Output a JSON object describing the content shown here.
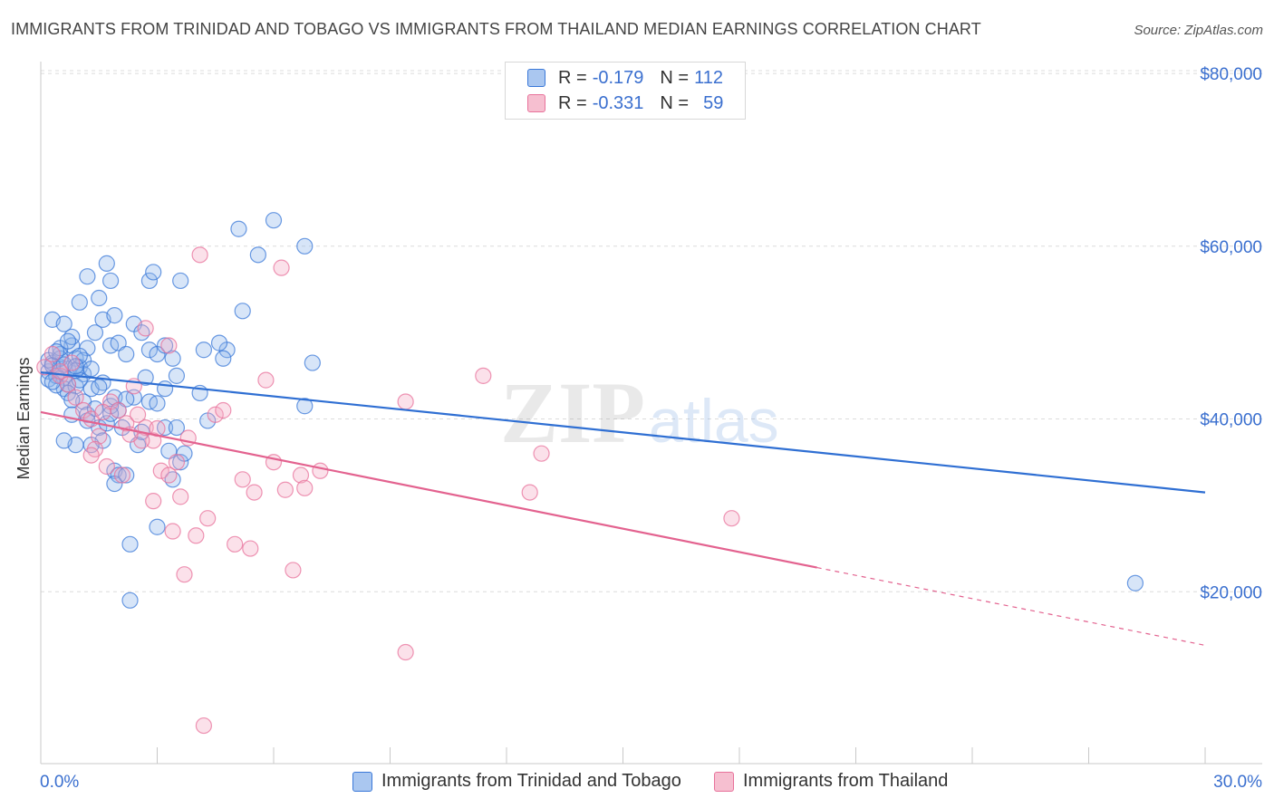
{
  "title": "IMMIGRANTS FROM TRINIDAD AND TOBAGO VS IMMIGRANTS FROM THAILAND MEDIAN EARNINGS CORRELATION CHART",
  "source": "Source: ZipAtlas.com",
  "watermark": {
    "zip": "ZIP",
    "atlas": "atlas"
  },
  "legend": {
    "rows": [
      {
        "r_label": "R =",
        "r_value": "-0.179",
        "n_label": "N =",
        "n_value": "112"
      },
      {
        "r_label": "R =",
        "r_value": "-0.331",
        "n_label": "N =",
        "n_value": "59"
      }
    ]
  },
  "colors": {
    "blue": "#3a78d8",
    "pink": "#e8729b",
    "blue_fill": "#aac7f0",
    "pink_fill": "#f6bfd0"
  },
  "chart_data": {
    "type": "scatter",
    "title": "IMMIGRANTS FROM TRINIDAD AND TOBAGO VS IMMIGRANTS FROM THAILAND MEDIAN EARNINGS CORRELATION CHART",
    "xlabel": "",
    "ylabel": "Median Earnings",
    "xlim": [
      0,
      30
    ],
    "ylim": [
      0,
      82000
    ],
    "x_tick_labels": [
      "0.0%",
      "30.0%"
    ],
    "y_ticks": [
      20000,
      40000,
      60000,
      80000
    ],
    "y_tick_labels": [
      "$20,000",
      "$40,000",
      "$60,000",
      "$80,000"
    ],
    "grid": true,
    "series": [
      {
        "name": "Immigrants from Trinidad and Tobago",
        "color": "#3a78d8",
        "trend": {
          "x0": 0,
          "y0": 45400,
          "x1": 30,
          "y1": 31500
        },
        "points": [
          [
            0.2,
            45500
          ],
          [
            0.3,
            46500
          ],
          [
            0.4,
            45000
          ],
          [
            0.5,
            46000
          ],
          [
            0.2,
            46800
          ],
          [
            0.6,
            44800
          ],
          [
            0.7,
            45800
          ],
          [
            0.5,
            47500
          ],
          [
            0.8,
            48500
          ],
          [
            0.9,
            47000
          ],
          [
            1.0,
            46000
          ],
          [
            1.1,
            45200
          ],
          [
            0.6,
            43500
          ],
          [
            0.7,
            44000
          ],
          [
            0.9,
            43800
          ],
          [
            1.0,
            44500
          ],
          [
            0.3,
            51500
          ],
          [
            0.6,
            51000
          ],
          [
            0.8,
            49500
          ],
          [
            1.2,
            48200
          ],
          [
            1.4,
            50000
          ],
          [
            1.6,
            51500
          ],
          [
            1.8,
            48500
          ],
          [
            2.0,
            48800
          ],
          [
            2.2,
            47500
          ],
          [
            2.4,
            51000
          ],
          [
            2.6,
            50000
          ],
          [
            2.8,
            48000
          ],
          [
            3.0,
            47500
          ],
          [
            3.2,
            48500
          ],
          [
            3.4,
            47000
          ],
          [
            1.2,
            56500
          ],
          [
            1.5,
            54000
          ],
          [
            1.8,
            56000
          ],
          [
            2.8,
            56000
          ],
          [
            2.9,
            57000
          ],
          [
            3.6,
            56000
          ],
          [
            1.0,
            53500
          ],
          [
            1.7,
            58000
          ],
          [
            1.9,
            52000
          ],
          [
            5.1,
            62000
          ],
          [
            6.0,
            63000
          ],
          [
            5.6,
            59000
          ],
          [
            6.8,
            60000
          ],
          [
            5.2,
            52500
          ],
          [
            7.0,
            46500
          ],
          [
            6.8,
            41500
          ],
          [
            4.8,
            48000
          ],
          [
            4.7,
            47000
          ],
          [
            4.2,
            48000
          ],
          [
            4.6,
            48800
          ],
          [
            3.5,
            45000
          ],
          [
            3.2,
            43500
          ],
          [
            4.1,
            43000
          ],
          [
            2.4,
            42500
          ],
          [
            2.8,
            42000
          ],
          [
            3.0,
            41800
          ],
          [
            2.0,
            41000
          ],
          [
            1.8,
            41500
          ],
          [
            1.9,
            42500
          ],
          [
            1.3,
            43500
          ],
          [
            1.1,
            42000
          ],
          [
            0.8,
            40500
          ],
          [
            1.2,
            40500
          ],
          [
            1.5,
            39000
          ],
          [
            1.7,
            39500
          ],
          [
            2.1,
            39000
          ],
          [
            2.5,
            37000
          ],
          [
            3.2,
            39000
          ],
          [
            3.5,
            39000
          ],
          [
            4.3,
            39800
          ],
          [
            1.6,
            37500
          ],
          [
            1.3,
            37000
          ],
          [
            0.9,
            37000
          ],
          [
            0.6,
            37500
          ],
          [
            1.9,
            34000
          ],
          [
            2.0,
            33500
          ],
          [
            2.2,
            33500
          ],
          [
            3.4,
            33000
          ],
          [
            3.6,
            35000
          ],
          [
            1.9,
            32500
          ],
          [
            3.0,
            27500
          ],
          [
            2.3,
            25500
          ],
          [
            2.3,
            19000
          ],
          [
            28.2,
            21000
          ],
          [
            0.4,
            45000
          ],
          [
            0.5,
            47000
          ],
          [
            0.3,
            46200
          ],
          [
            0.9,
            45600
          ],
          [
            1.1,
            46800
          ],
          [
            0.7,
            43000
          ],
          [
            1.6,
            44200
          ],
          [
            2.2,
            42300
          ],
          [
            1.4,
            41200
          ],
          [
            0.8,
            42200
          ],
          [
            3.7,
            36000
          ],
          [
            0.2,
            44600
          ],
          [
            0.4,
            43900
          ],
          [
            0.6,
            46300
          ],
          [
            1.0,
            47300
          ],
          [
            1.3,
            45800
          ],
          [
            0.5,
            48200
          ],
          [
            0.7,
            49000
          ],
          [
            0.9,
            46100
          ],
          [
            1.5,
            43700
          ],
          [
            1.8,
            40600
          ],
          [
            2.6,
            38500
          ],
          [
            3.3,
            36300
          ],
          [
            2.7,
            44800
          ],
          [
            1.2,
            39800
          ],
          [
            0.4,
            47800
          ],
          [
            0.3,
            44300
          ]
        ]
      },
      {
        "name": "Immigrants from Thailand",
        "color": "#e8729b",
        "trend": {
          "x0": 0,
          "y0": 40800,
          "x1": 20,
          "y1": 22800,
          "dash_x1": 30,
          "dash_y1": 13800
        },
        "points": [
          [
            0.1,
            46000
          ],
          [
            0.3,
            47500
          ],
          [
            0.5,
            45000
          ],
          [
            0.7,
            44000
          ],
          [
            0.9,
            42500
          ],
          [
            1.1,
            41000
          ],
          [
            1.3,
            40000
          ],
          [
            1.5,
            38000
          ],
          [
            1.4,
            36500
          ],
          [
            1.8,
            42000
          ],
          [
            2.0,
            41000
          ],
          [
            2.2,
            39500
          ],
          [
            2.5,
            40500
          ],
          [
            2.7,
            39000
          ],
          [
            2.9,
            37500
          ],
          [
            1.7,
            34500
          ],
          [
            2.1,
            33500
          ],
          [
            2.6,
            37500
          ],
          [
            3.1,
            34000
          ],
          [
            3.3,
            33500
          ],
          [
            3.5,
            35000
          ],
          [
            2.9,
            30500
          ],
          [
            3.6,
            31000
          ],
          [
            3.4,
            27000
          ],
          [
            4.0,
            26500
          ],
          [
            4.5,
            40500
          ],
          [
            4.7,
            41000
          ],
          [
            5.2,
            33000
          ],
          [
            5.5,
            31500
          ],
          [
            5.8,
            44500
          ],
          [
            6.0,
            35000
          ],
          [
            6.3,
            31800
          ],
          [
            6.7,
            33500
          ],
          [
            6.8,
            32000
          ],
          [
            4.1,
            59000
          ],
          [
            6.2,
            57500
          ],
          [
            2.7,
            50500
          ],
          [
            3.3,
            48500
          ],
          [
            7.2,
            34000
          ],
          [
            9.4,
            42000
          ],
          [
            11.4,
            45000
          ],
          [
            12.9,
            36000
          ],
          [
            12.6,
            31500
          ],
          [
            17.8,
            28500
          ],
          [
            4.3,
            28500
          ],
          [
            5.0,
            25500
          ],
          [
            5.4,
            25000
          ],
          [
            6.5,
            22500
          ],
          [
            3.7,
            22000
          ],
          [
            9.4,
            13000
          ],
          [
            4.2,
            4500
          ],
          [
            1.3,
            35800
          ],
          [
            2.3,
            38200
          ],
          [
            3.8,
            37800
          ],
          [
            0.5,
            45500
          ],
          [
            0.8,
            46500
          ],
          [
            1.6,
            40800
          ],
          [
            3.0,
            38900
          ],
          [
            2.4,
            43800
          ]
        ]
      }
    ]
  }
}
